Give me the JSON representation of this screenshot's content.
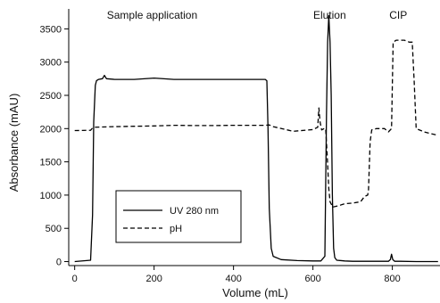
{
  "chart_data": {
    "type": "line",
    "title": "",
    "xlabel": "Volume (mL)",
    "ylabel": "Absorbance (mAU)",
    "xlim": [
      -15,
      920
    ],
    "ylim": [
      -60,
      3800
    ],
    "xticks": [
      0,
      200,
      400,
      600,
      800
    ],
    "yticks": [
      0,
      500,
      1000,
      1500,
      2000,
      2500,
      3000,
      3500
    ],
    "grid": false,
    "legend": {
      "placement": "bottom-center",
      "entries": [
        {
          "name": "UV 280 nm",
          "style": "solid"
        },
        {
          "name": "pH",
          "style": "dashed"
        }
      ]
    },
    "annotations": [
      {
        "text": "Sample application",
        "x": 195,
        "y": 3800
      },
      {
        "text": "Elution",
        "x": 642,
        "y": 3800
      },
      {
        "text": "CIP",
        "x": 815,
        "y": 3800
      }
    ],
    "series": [
      {
        "name": "UV 280 nm",
        "style": "solid",
        "color": "#000000",
        "x": [
          0,
          40,
          45,
          48,
          52,
          55,
          60,
          70,
          75,
          80,
          100,
          150,
          200,
          250,
          300,
          350,
          400,
          450,
          480,
          484,
          487,
          490,
          495,
          500,
          520,
          560,
          600,
          620,
          630,
          634,
          637,
          640,
          643,
          646,
          649,
          652,
          655,
          660,
          680,
          700,
          750,
          790,
          795,
          798,
          801,
          806,
          820,
          860,
          900,
          915
        ],
        "y": [
          0,
          20,
          700,
          2100,
          2650,
          2720,
          2740,
          2750,
          2800,
          2750,
          2740,
          2740,
          2760,
          2740,
          2740,
          2740,
          2740,
          2740,
          2740,
          2720,
          2000,
          800,
          200,
          80,
          30,
          15,
          10,
          10,
          80,
          2200,
          3300,
          3700,
          3300,
          2500,
          1000,
          200,
          60,
          20,
          10,
          5,
          5,
          5,
          30,
          110,
          30,
          5,
          5,
          0,
          0,
          0
        ]
      },
      {
        "name": "pH",
        "style": "dashed",
        "color": "#000000",
        "x": [
          0,
          40,
          45,
          50,
          100,
          150,
          200,
          250,
          300,
          350,
          400,
          450,
          480,
          490,
          500,
          550,
          600,
          612,
          615,
          618,
          622,
          628,
          632,
          636,
          640,
          643,
          650,
          665,
          680,
          700,
          720,
          730,
          738,
          740,
          744,
          748,
          760,
          780,
          790,
          798,
          802,
          810,
          830,
          843,
          850,
          855,
          860,
          880,
          900,
          915
        ],
        "y": [
          1970,
          1975,
          2010,
          2020,
          2030,
          2035,
          2040,
          2050,
          2045,
          2045,
          2050,
          2050,
          2050,
          2055,
          2030,
          1960,
          1985,
          2020,
          2310,
          2100,
          1980,
          2000,
          2000,
          1600,
          1100,
          900,
          820,
          840,
          870,
          880,
          900,
          980,
          1000,
          1080,
          1800,
          1980,
          2000,
          2000,
          1950,
          2000,
          3300,
          3330,
          3330,
          3300,
          3300,
          2700,
          2000,
          1950,
          1920,
          1900
        ]
      }
    ]
  }
}
